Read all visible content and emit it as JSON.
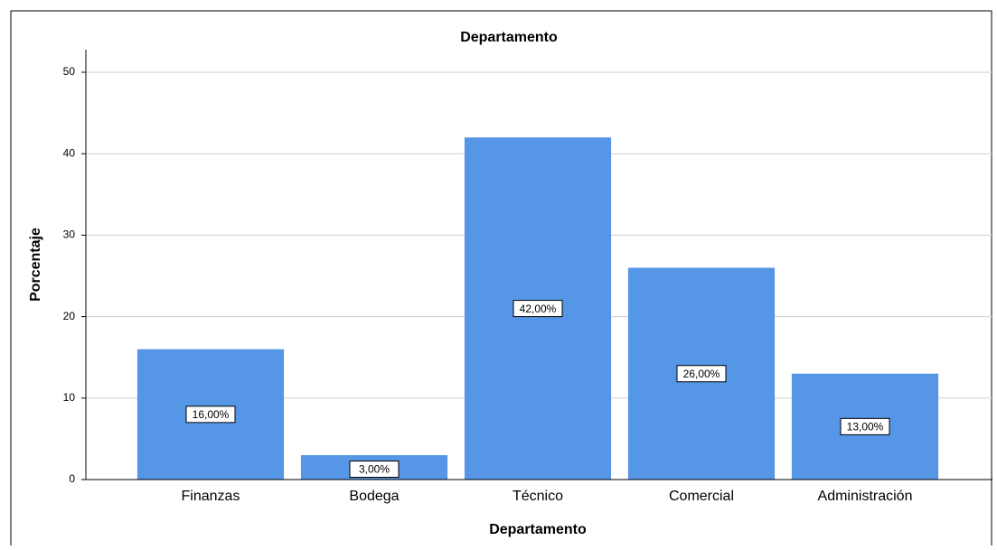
{
  "chart_data": {
    "type": "bar",
    "title": "Departamento",
    "x_label": "Departamento",
    "y_label": "Porcentaje",
    "categories": [
      "Finanzas",
      "Bodega",
      "Técnico",
      "Comercial",
      "Administración"
    ],
    "values": [
      16,
      3,
      42,
      26,
      13
    ],
    "value_labels": [
      "16,00%",
      "3,00%",
      "42,00%",
      "26,00%",
      "13,00%"
    ],
    "color": "#5596e6",
    "ylim": [
      0,
      50
    ],
    "yticks": [
      0,
      10,
      20,
      30,
      40,
      50
    ],
    "grid": true
  }
}
